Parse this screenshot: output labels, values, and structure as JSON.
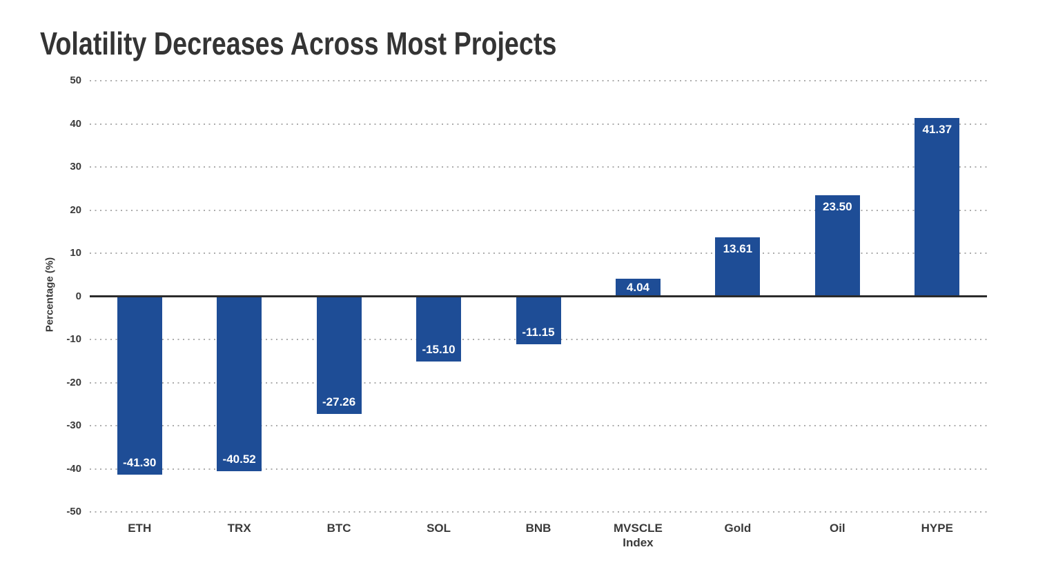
{
  "chart_data": {
    "type": "bar",
    "title": "Volatility Decreases Across Most Projects",
    "xlabel": "",
    "ylabel": "Percentage (%)",
    "categories": [
      "ETH",
      "TRX",
      "BTC",
      "SOL",
      "BNB",
      "MVSCLE Index",
      "Gold",
      "Oil",
      "HYPE"
    ],
    "values": [
      -41.3,
      -40.52,
      -27.26,
      -15.1,
      -11.15,
      4.04,
      13.61,
      23.5,
      41.37
    ],
    "value_labels": [
      "-41.30",
      "-40.52",
      "-27.26",
      "-15.10",
      "-11.15",
      "4.04",
      "13.61",
      "23.50",
      "41.37"
    ],
    "ylim": [
      -50,
      50
    ],
    "yticks": [
      50,
      40,
      30,
      20,
      10,
      0,
      -10,
      -20,
      -30,
      -40,
      -50
    ],
    "grid": "dotted horizontal, solid zero line",
    "legend": "none",
    "colors": {
      "bar": "#1e4d96",
      "bar_value_text": "#ffffff",
      "axis_text": "#3a3a3a",
      "title_text": "#343434",
      "gridline": "#ababab",
      "zero_line": "#2b2b2b",
      "background": "#ffffff"
    }
  }
}
